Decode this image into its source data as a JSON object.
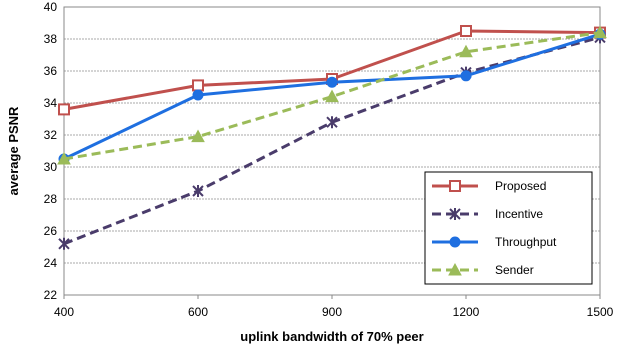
{
  "chart_data": {
    "type": "line",
    "xlabel": "uplink bandwidth of 70% peer",
    "ylabel": "average PSNR",
    "x": [
      400,
      600,
      900,
      1200,
      1500
    ],
    "x_tick_labels": [
      "400",
      "600",
      "900",
      "1200",
      "1500"
    ],
    "ylim": [
      22,
      40
    ],
    "y_ticks": [
      22,
      24,
      26,
      28,
      30,
      32,
      34,
      36,
      38,
      40
    ],
    "grid": "horizontal",
    "legend_position": "bottom-right",
    "series": [
      {
        "name": "Proposed",
        "values": [
          33.6,
          35.1,
          35.5,
          38.5,
          38.4
        ],
        "color": "#c0504d",
        "marker": "square-open",
        "dash": "solid"
      },
      {
        "name": "Incentive",
        "values": [
          25.2,
          28.5,
          32.8,
          35.9,
          38.1
        ],
        "color": "#4a3c6b",
        "marker": "asterisk",
        "dash": "dashed"
      },
      {
        "name": "Throughput",
        "values": [
          30.5,
          34.5,
          35.3,
          35.7,
          38.3
        ],
        "color": "#1f6fe0",
        "marker": "circle",
        "dash": "solid"
      },
      {
        "name": "Sender",
        "values": [
          30.5,
          31.9,
          34.4,
          37.2,
          38.4
        ],
        "color": "#9bbb59",
        "marker": "triangle",
        "dash": "dashed"
      }
    ]
  }
}
